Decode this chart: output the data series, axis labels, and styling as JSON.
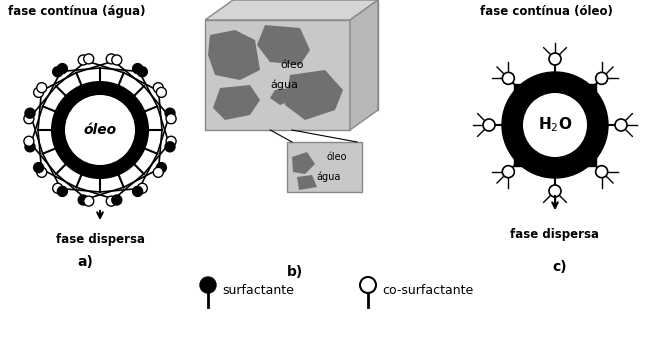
{
  "title_a": "fase contínua (água)",
  "title_c": "fase contínua (óleo)",
  "label_a": "fase dispersa",
  "label_c": "fase dispersa",
  "letter_a": "a)",
  "letter_b": "b)",
  "letter_c": "c)",
  "center_label_a": "óleo",
  "center_label_c": "H₂O",
  "bicont_label1": "óleo",
  "bicont_label2": "água",
  "bicont_label3": "óleo",
  "bicont_label4": "água",
  "legend_surf": "surfactante",
  "legend_cosurf": "co-surfactante",
  "bg_color": "#ffffff",
  "text_color": "#000000",
  "gray_light": "#c8c8c8",
  "gray_mid": "#a0a0a0",
  "gray_dark": "#707070"
}
